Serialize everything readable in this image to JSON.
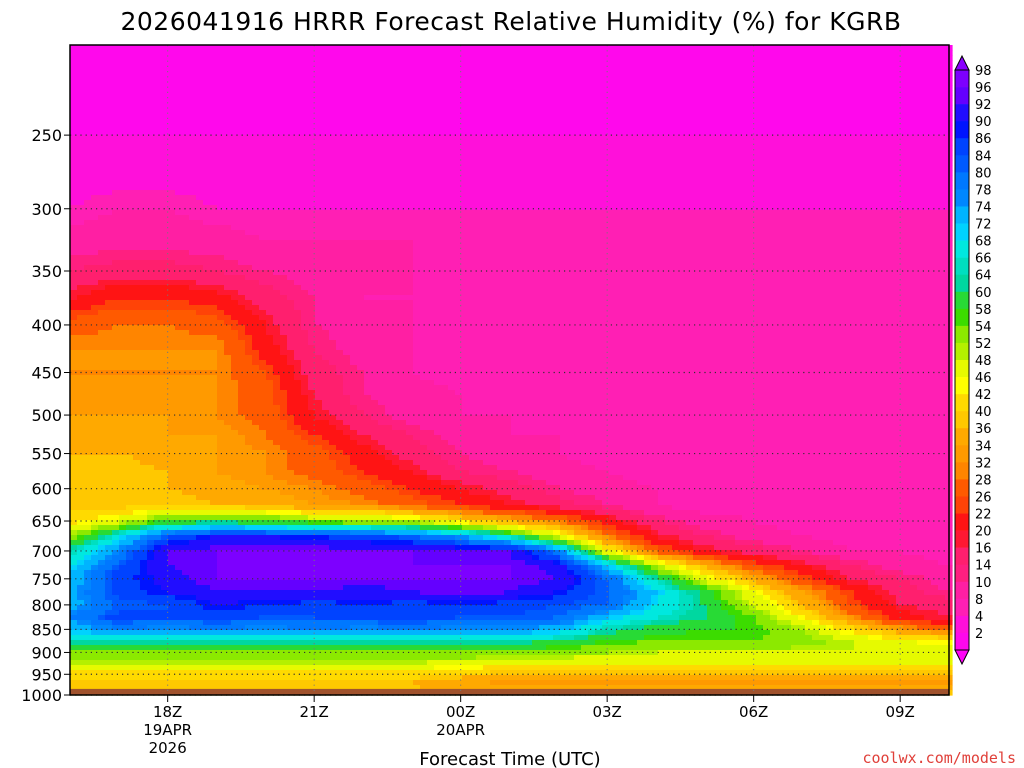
{
  "chart_data": {
    "type": "heatmap",
    "title": "2026041916 HRRR Forecast Relative Humidity (%) for KGRB",
    "xlabel": "Forecast Time (UTC)",
    "ylabel": "",
    "x_ticks": [
      {
        "hours": 2,
        "label": "18Z",
        "sub1": "19APR",
        "sub2": "2026"
      },
      {
        "hours": 5,
        "label": "21Z",
        "sub1": "",
        "sub2": ""
      },
      {
        "hours": 8,
        "label": "00Z",
        "sub1": "20APR",
        "sub2": ""
      },
      {
        "hours": 11,
        "label": "03Z",
        "sub1": "",
        "sub2": ""
      },
      {
        "hours": 14,
        "label": "06Z",
        "sub1": "",
        "sub2": ""
      },
      {
        "hours": 17,
        "label": "09Z",
        "sub1": "",
        "sub2": ""
      }
    ],
    "x_range_hours_from_16Z": [
      0,
      18
    ],
    "y_scale": "log pressure (hPa), reversed",
    "y_range": [
      1000,
      200
    ],
    "y_ticks": [
      250,
      300,
      350,
      400,
      450,
      500,
      550,
      600,
      650,
      700,
      750,
      800,
      850,
      900,
      950,
      1000
    ],
    "grid": true,
    "colorbar": {
      "levels": [
        2,
        4,
        8,
        10,
        14,
        16,
        20,
        22,
        26,
        28,
        32,
        34,
        36,
        40,
        42,
        46,
        48,
        52,
        54,
        58,
        60,
        64,
        66,
        68,
        72,
        74,
        78,
        80,
        84,
        86,
        90,
        92,
        96,
        98
      ],
      "extend": "both"
    },
    "terrain_color": "#a0522d",
    "series": [
      {
        "name": "RH (%)",
        "rows_pressure": [
          1000,
          975,
          950,
          925,
          900,
          875,
          850,
          825,
          800,
          775,
          750,
          725,
          700,
          675,
          650,
          625,
          600,
          575,
          550,
          525,
          500,
          475,
          450,
          425,
          400,
          375,
          350,
          325,
          300,
          275,
          250,
          225,
          200
        ],
        "cols_hours": [
          0,
          1,
          2,
          3,
          4,
          5,
          6,
          7,
          8,
          9,
          10,
          11,
          12,
          13,
          14,
          15,
          16,
          17,
          18
        ],
        "values": [
          [
            44,
            44,
            44,
            44,
            44,
            44,
            44,
            44,
            44,
            44,
            44,
            44,
            44,
            44,
            44,
            44,
            44,
            44,
            44
          ],
          [
            40,
            40,
            40,
            40,
            40,
            40,
            40,
            39,
            36,
            34,
            34,
            34,
            34,
            34,
            34,
            34,
            34,
            34,
            34
          ],
          [
            44,
            44,
            44,
            44,
            44,
            44,
            44,
            44,
            42,
            40,
            40,
            40,
            40,
            40,
            40,
            40,
            40,
            40,
            40
          ],
          [
            52,
            52,
            52,
            52,
            52,
            52,
            52,
            52,
            50,
            48,
            48,
            48,
            48,
            48,
            48,
            48,
            48,
            48,
            48
          ],
          [
            58,
            58,
            58,
            58,
            58,
            58,
            58,
            58,
            58,
            58,
            56,
            54,
            52,
            52,
            52,
            52,
            52,
            52,
            52
          ],
          [
            66,
            66,
            66,
            66,
            66,
            66,
            66,
            66,
            66,
            66,
            64,
            60,
            58,
            58,
            58,
            56,
            52,
            48,
            46
          ],
          [
            74,
            80,
            78,
            80,
            78,
            80,
            78,
            80,
            78,
            78,
            76,
            66,
            62,
            60,
            60,
            54,
            44,
            36,
            30
          ],
          [
            80,
            88,
            86,
            88,
            86,
            86,
            88,
            88,
            86,
            86,
            84,
            74,
            68,
            64,
            58,
            46,
            34,
            24,
            20
          ],
          [
            76,
            84,
            86,
            92,
            90,
            88,
            90,
            88,
            90,
            88,
            86,
            84,
            72,
            64,
            52,
            40,
            28,
            20,
            18
          ],
          [
            76,
            88,
            92,
            96,
            96,
            96,
            94,
            96,
            98,
            96,
            92,
            84,
            74,
            62,
            48,
            36,
            26,
            18,
            14
          ],
          [
            74,
            88,
            94,
            98,
            98,
            98,
            98,
            98,
            98,
            98,
            96,
            84,
            66,
            50,
            38,
            28,
            20,
            16,
            12
          ],
          [
            72,
            86,
            96,
            98,
            98,
            98,
            98,
            98,
            98,
            98,
            94,
            74,
            52,
            38,
            28,
            22,
            16,
            12,
            10
          ],
          [
            66,
            80,
            96,
            98,
            98,
            98,
            98,
            98,
            96,
            96,
            80,
            48,
            30,
            22,
            18,
            14,
            10,
            10,
            8
          ],
          [
            54,
            70,
            86,
            92,
            92,
            90,
            88,
            84,
            78,
            66,
            50,
            32,
            22,
            16,
            12,
            10,
            8,
            8,
            8
          ],
          [
            44,
            50,
            60,
            62,
            60,
            56,
            54,
            52,
            44,
            38,
            32,
            24,
            16,
            12,
            10,
            8,
            8,
            8,
            8
          ],
          [
            40,
            40,
            42,
            40,
            38,
            36,
            34,
            30,
            26,
            22,
            18,
            14,
            10,
            8,
            8,
            8,
            8,
            8,
            8
          ],
          [
            40,
            40,
            40,
            38,
            36,
            34,
            30,
            26,
            22,
            18,
            14,
            12,
            10,
            8,
            8,
            8,
            8,
            8,
            8
          ],
          [
            40,
            42,
            40,
            36,
            34,
            30,
            26,
            22,
            16,
            14,
            12,
            10,
            8,
            8,
            8,
            8,
            8,
            8,
            8
          ],
          [
            40,
            40,
            38,
            36,
            34,
            30,
            24,
            18,
            14,
            12,
            10,
            8,
            8,
            8,
            8,
            8,
            8,
            8,
            8
          ],
          [
            38,
            36,
            36,
            36,
            32,
            26,
            20,
            16,
            12,
            10,
            10,
            8,
            8,
            8,
            8,
            8,
            8,
            8,
            8
          ],
          [
            36,
            36,
            36,
            34,
            30,
            22,
            16,
            12,
            10,
            10,
            8,
            8,
            8,
            8,
            8,
            8,
            8,
            8,
            8
          ],
          [
            34,
            34,
            34,
            34,
            30,
            20,
            14,
            12,
            10,
            8,
            8,
            8,
            8,
            8,
            8,
            8,
            8,
            8,
            8
          ],
          [
            34,
            34,
            34,
            34,
            28,
            18,
            14,
            10,
            8,
            8,
            8,
            8,
            8,
            8,
            8,
            8,
            8,
            8,
            8
          ],
          [
            34,
            34,
            34,
            34,
            24,
            16,
            12,
            10,
            8,
            8,
            8,
            8,
            8,
            8,
            8,
            8,
            8,
            8,
            8
          ],
          [
            30,
            32,
            32,
            30,
            22,
            14,
            12,
            10,
            8,
            8,
            8,
            8,
            8,
            8,
            8,
            8,
            8,
            8,
            8
          ],
          [
            22,
            26,
            26,
            24,
            18,
            14,
            10,
            10,
            8,
            8,
            8,
            8,
            8,
            8,
            8,
            8,
            8,
            8,
            8
          ],
          [
            16,
            18,
            18,
            16,
            14,
            12,
            10,
            10,
            8,
            8,
            8,
            8,
            8,
            8,
            8,
            8,
            8,
            8,
            8
          ],
          [
            12,
            12,
            12,
            12,
            10,
            10,
            10,
            10,
            10,
            8,
            8,
            8,
            8,
            8,
            8,
            8,
            8,
            8,
            8
          ],
          [
            8,
            10,
            10,
            8,
            8,
            8,
            8,
            8,
            8,
            8,
            8,
            8,
            8,
            8,
            8,
            8,
            8,
            8,
            8
          ],
          [
            6,
            6,
            6,
            6,
            6,
            6,
            6,
            6,
            6,
            6,
            6,
            6,
            6,
            6,
            6,
            6,
            6,
            6,
            6
          ],
          [
            4,
            4,
            4,
            4,
            4,
            4,
            4,
            4,
            4,
            4,
            4,
            4,
            4,
            4,
            4,
            4,
            4,
            4,
            4
          ],
          [
            2,
            2,
            2,
            2,
            2,
            2,
            2,
            2,
            2,
            2,
            2,
            2,
            2,
            2,
            2,
            2,
            2,
            2,
            2
          ],
          [
            2,
            2,
            2,
            2,
            2,
            2,
            2,
            2,
            2,
            2,
            2,
            2,
            2,
            2,
            2,
            2,
            2,
            2,
            2
          ]
        ]
      }
    ]
  },
  "credit": "coolwx.com/models"
}
